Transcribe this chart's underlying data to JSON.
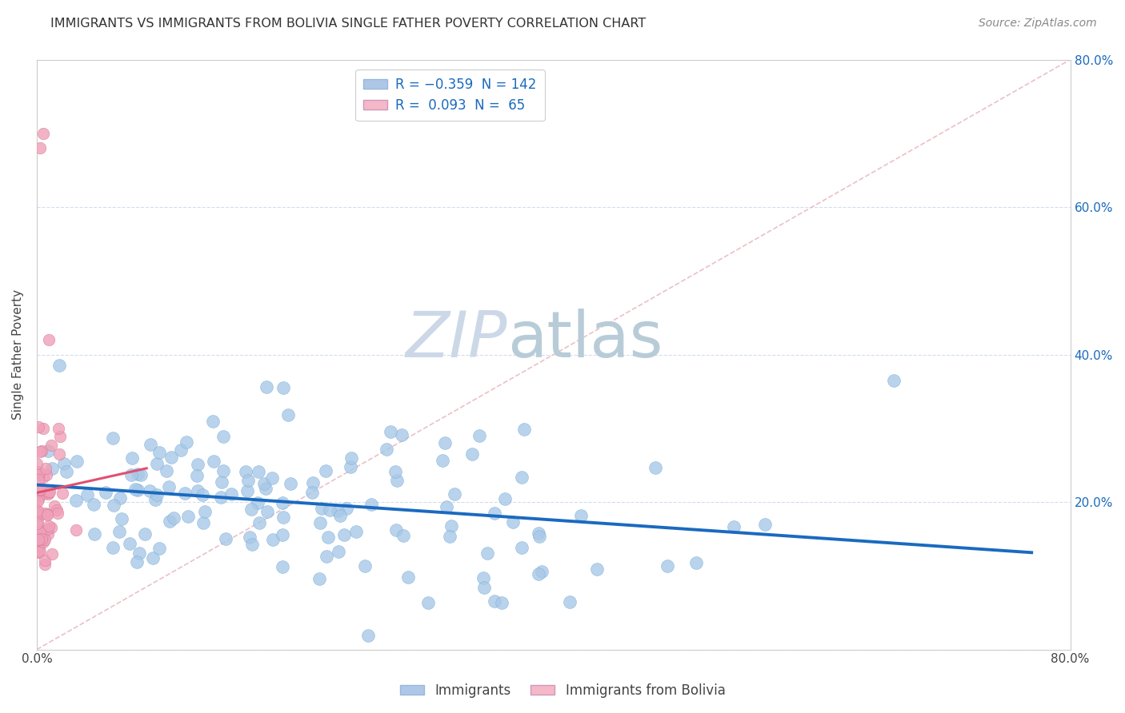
{
  "title": "IMMIGRANTS VS IMMIGRANTS FROM BOLIVIA SINGLE FATHER POVERTY CORRELATION CHART",
  "source": "Source: ZipAtlas.com",
  "ylabel": "Single Father Poverty",
  "xlim": [
    0,
    0.8
  ],
  "ylim": [
    0,
    0.8
  ],
  "xtick_positions": [
    0.0,
    0.1,
    0.2,
    0.3,
    0.4,
    0.5,
    0.6,
    0.7,
    0.8
  ],
  "xtick_labels": [
    "0.0%",
    "",
    "",
    "",
    "",
    "",
    "",
    "",
    "80.0%"
  ],
  "ytick_positions": [
    0.0,
    0.2,
    0.4,
    0.6,
    0.8
  ],
  "ytick_labels_right": [
    "",
    "20.0%",
    "40.0%",
    "60.0%",
    "80.0%"
  ],
  "r_immigrants": -0.359,
  "n_immigrants": 142,
  "r_bolivia": 0.093,
  "n_bolivia": 65,
  "dot_color_immigrants": "#a8c8e8",
  "dot_edge_immigrants": "#7aadd4",
  "dot_color_bolivia": "#f0a0b8",
  "dot_edge_bolivia": "#d07898",
  "line_color_immigrants": "#1a6abf",
  "line_color_bolivia": "#e05070",
  "diag_color": "#e8b0b8",
  "background_color": "#ffffff",
  "grid_color": "#c8d4e8",
  "watermark_zip_color": "#ccd8e8",
  "watermark_atlas_color": "#b8ccd8",
  "legend_box_color": "#aec6e8",
  "legend_box_color2": "#f4b8c8",
  "label_color": "#1a6abf",
  "title_color": "#333333",
  "source_color": "#888888",
  "seed": 42
}
